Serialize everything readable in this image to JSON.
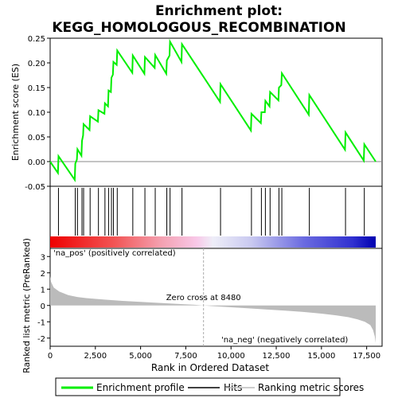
{
  "title": "Enrichment plot:\nKEGG_HOMOLOGOUS_RECOMBINATION",
  "title_lines": [
    "Enrichment plot:",
    "KEGG_HOMOLOGOUS_RECOMBINATION"
  ],
  "colors": {
    "enrichment_line": "#00ee00",
    "hits": "#000000",
    "ranking_fill": "#bbbbbb",
    "zero_line": "#aaaaaa",
    "pos_label": "#cc0000",
    "neg_label": "#0000cc"
  },
  "chart_data": [
    {
      "type": "line",
      "name": "enrichment-score",
      "ylabel": "Enrichment score (ES)",
      "xlim": [
        0,
        18000
      ],
      "ylim": [
        -0.05,
        0.25
      ],
      "yticks": [
        -0.05,
        0.0,
        0.05,
        0.1,
        0.15,
        0.2,
        0.25
      ],
      "ytick_labels": [
        "-0.05",
        "0.00",
        "0.05",
        "0.10",
        "0.15",
        "0.20",
        "0.25"
      ],
      "grid": false,
      "series": [
        {
          "name": "Enrichment profile",
          "x": [
            0,
            430,
            460,
            1360,
            1390,
            1480,
            1510,
            1730,
            1760,
            1820,
            1850,
            2180,
            2210,
            2640,
            2670,
            3000,
            3030,
            3200,
            3230,
            3360,
            3390,
            3470,
            3500,
            3680,
            3710,
            4540,
            4570,
            5210,
            5240,
            5780,
            5810,
            6420,
            6450,
            6600,
            6630,
            7260,
            7290,
            9390,
            9420,
            11100,
            11130,
            11650,
            11680,
            11870,
            11900,
            12130,
            12160,
            12620,
            12650,
            12780,
            12810,
            14300,
            14330,
            16300,
            16330,
            17340,
            17370,
            18000
          ],
          "y": [
            0.0,
            -0.023,
            0.011,
            -0.037,
            -0.004,
            0.004,
            0.025,
            0.012,
            0.042,
            0.053,
            0.076,
            0.064,
            0.092,
            0.081,
            0.104,
            0.097,
            0.118,
            0.112,
            0.144,
            0.141,
            0.17,
            0.176,
            0.202,
            0.196,
            0.225,
            0.18,
            0.215,
            0.178,
            0.212,
            0.19,
            0.216,
            0.178,
            0.205,
            0.215,
            0.243,
            0.202,
            0.238,
            0.121,
            0.157,
            0.063,
            0.097,
            0.078,
            0.1,
            0.1,
            0.123,
            0.112,
            0.141,
            0.124,
            0.15,
            0.155,
            0.179,
            0.095,
            0.135,
            0.024,
            0.059,
            0.002,
            0.035,
            0.0
          ]
        }
      ]
    },
    {
      "type": "scatter",
      "name": "hits",
      "hit_ranks": [
        460,
        1390,
        1510,
        1760,
        1850,
        2210,
        2670,
        3030,
        3230,
        3390,
        3500,
        3710,
        4570,
        5240,
        5810,
        6450,
        6630,
        7290,
        9420,
        11130,
        11680,
        11900,
        12160,
        12650,
        12810,
        14330,
        16330,
        17370
      ]
    },
    {
      "type": "area",
      "name": "ranked-list-metric",
      "xlabel": "Rank in Ordered Dataset",
      "ylabel": "Ranked list metric (PreRanked)",
      "xlim": [
        0,
        18000
      ],
      "ylim": [
        -2.5,
        3.5
      ],
      "xticks": [
        0,
        2500,
        5000,
        7500,
        10000,
        12500,
        15000,
        17500
      ],
      "xtick_labels": [
        "0",
        "2,500",
        "5,000",
        "7,500",
        "10,000",
        "12,500",
        "15,000",
        "17,500"
      ],
      "yticks": [
        -2,
        -1,
        0,
        1,
        2,
        3
      ],
      "ytick_labels": [
        "-2",
        "-1",
        "0",
        "1",
        "2",
        "3"
      ],
      "x": [
        0,
        50,
        200,
        500,
        1000,
        1500,
        2000,
        3000,
        4000,
        5000,
        6000,
        7000,
        8000,
        8480,
        9000,
        10000,
        11000,
        12000,
        13000,
        14000,
        15000,
        15800,
        16500,
        17000,
        17400,
        17700,
        17850,
        17950,
        18000
      ],
      "values": [
        1.8,
        1.45,
        1.1,
        0.85,
        0.63,
        0.52,
        0.45,
        0.36,
        0.28,
        0.22,
        0.16,
        0.1,
        0.04,
        0.0,
        -0.04,
        -0.11,
        -0.18,
        -0.25,
        -0.32,
        -0.4,
        -0.5,
        -0.6,
        -0.72,
        -0.85,
        -1.0,
        -1.2,
        -1.5,
        -1.9,
        -2.3
      ],
      "zero_cross_rank": 8480,
      "annotations": {
        "zero_cross": "Zero cross at 8480",
        "pos": "'na_pos' (positively correlated)",
        "neg": "'na_neg' (negatively correlated)"
      }
    }
  ],
  "legend": {
    "items": [
      {
        "label": "Enrichment profile",
        "color": "#00ee00"
      },
      {
        "label": "Hits",
        "color": "#000000"
      },
      {
        "label": "Ranking metric scores",
        "color": "#bbbbbb"
      }
    ]
  }
}
